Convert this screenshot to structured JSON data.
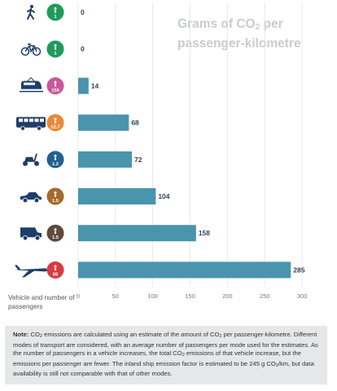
{
  "title": {
    "main": "Grams of CO",
    "sub": "2",
    "rest": " per passenger-kilometre"
  },
  "y_axis_label": "Vehicle and number of passengers",
  "note": {
    "label": "Note:",
    "p1": " CO",
    "p2": " emissions are calculated using an estimate of the amount of CO",
    "p3": " per passenger-kilometre. Different modes of transport are considered, with an average number of passengers per mode used for the estimates. As the number of passengers in a vehicle increases, the total CO",
    "p4": " emissions of that vehicle increase, but the emissions per passenger are fewer. The inland ship emission factor is estimated to be 245 g CO",
    "p5": "/km, but data availability is still not comparable with that of other modes.",
    "sub": "2"
  },
  "colors": {
    "bar": "#4a94ad",
    "title": "#c9cbcd",
    "value": "#33415c",
    "vehicle": "#1f3d6b"
  },
  "chart_data": {
    "type": "bar",
    "orientation": "horizontal",
    "categories": [
      "Walking",
      "Cycling",
      "Train",
      "Bus",
      "Motorcycle",
      "Small car",
      "Large car",
      "Plane"
    ],
    "passengers": [
      "1",
      "1",
      "156",
      "12.7",
      "1.2",
      "1.5",
      "1.5",
      "88"
    ],
    "badge_colors": [
      "#1e9b5b",
      "#1e9b5b",
      "#c8579b",
      "#e8893a",
      "#235f8f",
      "#a8692c",
      "#5c4a3b",
      "#d83a3f"
    ],
    "values": [
      0,
      0,
      14,
      68,
      72,
      104,
      158,
      285
    ],
    "value_labels": [
      "0",
      "0",
      "14",
      "68",
      "72",
      "104",
      "158",
      "285"
    ],
    "xlim": [
      0,
      300
    ],
    "xticks": [
      "0",
      "50",
      "100",
      "150",
      "200",
      "250",
      "300"
    ],
    "grid": true
  }
}
